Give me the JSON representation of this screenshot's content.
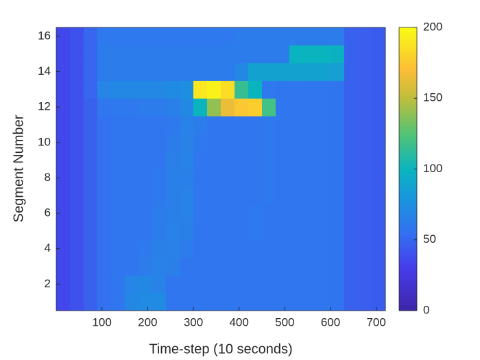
{
  "chart_data": {
    "type": "heatmap",
    "x_label": "Time-step (10 seconds)",
    "y_label": "Segment Number",
    "x_bins": [
      0,
      30,
      60,
      90,
      120,
      150,
      180,
      210,
      240,
      270,
      300,
      330,
      360,
      390,
      420,
      450,
      480,
      510,
      540,
      570,
      600,
      630,
      660,
      690,
      720
    ],
    "y": [
      1,
      2,
      3,
      4,
      5,
      6,
      7,
      8,
      9,
      10,
      11,
      12,
      13,
      14,
      15,
      16
    ],
    "z": [
      [
        35,
        40,
        48,
        55,
        58,
        70,
        72,
        72,
        58,
        58,
        58,
        58,
        58,
        58,
        58,
        58,
        58,
        58,
        58,
        58,
        57,
        48,
        46,
        45
      ],
      [
        35,
        40,
        48,
        55,
        58,
        68,
        70,
        66,
        58,
        58,
        58,
        58,
        58,
        58,
        58,
        58,
        58,
        58,
        58,
        58,
        57,
        48,
        46,
        45
      ],
      [
        35,
        40,
        48,
        55,
        58,
        58,
        62,
        66,
        64,
        58,
        58,
        58,
        58,
        58,
        58,
        58,
        58,
        58,
        58,
        58,
        57,
        48,
        46,
        45
      ],
      [
        35,
        40,
        48,
        55,
        58,
        58,
        60,
        64,
        66,
        62,
        58,
        58,
        58,
        58,
        58,
        58,
        58,
        58,
        58,
        58,
        57,
        48,
        46,
        45
      ],
      [
        35,
        40,
        48,
        55,
        58,
        58,
        58,
        62,
        66,
        64,
        58,
        58,
        58,
        58,
        60,
        58,
        58,
        58,
        58,
        58,
        57,
        48,
        46,
        45
      ],
      [
        35,
        40,
        48,
        55,
        58,
        58,
        58,
        62,
        64,
        66,
        58,
        58,
        58,
        58,
        60,
        58,
        58,
        58,
        58,
        58,
        57,
        48,
        46,
        45
      ],
      [
        35,
        40,
        48,
        55,
        58,
        58,
        58,
        60,
        64,
        66,
        58,
        58,
        58,
        58,
        58,
        60,
        58,
        58,
        58,
        58,
        57,
        48,
        46,
        45
      ],
      [
        35,
        40,
        48,
        55,
        58,
        58,
        58,
        60,
        64,
        65,
        58,
        58,
        58,
        58,
        58,
        60,
        58,
        58,
        58,
        58,
        57,
        48,
        46,
        45
      ],
      [
        35,
        40,
        48,
        55,
        58,
        58,
        58,
        58,
        64,
        66,
        58,
        58,
        58,
        58,
        58,
        60,
        58,
        58,
        58,
        58,
        57,
        48,
        46,
        45
      ],
      [
        35,
        40,
        48,
        55,
        58,
        58,
        58,
        58,
        62,
        66,
        60,
        58,
        58,
        58,
        58,
        60,
        58,
        58,
        58,
        58,
        57,
        48,
        46,
        45
      ],
      [
        35,
        40,
        48,
        55,
        58,
        58,
        58,
        58,
        60,
        66,
        62,
        58,
        58,
        58,
        58,
        60,
        58,
        58,
        58,
        58,
        57,
        48,
        46,
        45
      ],
      [
        35,
        40,
        48,
        58,
        60,
        60,
        62,
        62,
        64,
        70,
        100,
        140,
        165,
        175,
        178,
        120,
        58,
        58,
        58,
        58,
        57,
        48,
        46,
        45
      ],
      [
        35,
        40,
        50,
        68,
        70,
        70,
        70,
        70,
        72,
        75,
        190,
        195,
        185,
        115,
        100,
        60,
        58,
        58,
        58,
        58,
        57,
        48,
        46,
        45
      ],
      [
        35,
        40,
        50,
        62,
        62,
        62,
        62,
        62,
        62,
        62,
        62,
        62,
        62,
        70,
        88,
        88,
        88,
        88,
        88,
        88,
        86,
        48,
        46,
        45
      ],
      [
        35,
        40,
        50,
        62,
        62,
        62,
        62,
        62,
        62,
        62,
        62,
        62,
        62,
        62,
        62,
        62,
        62,
        100,
        100,
        100,
        98,
        48,
        46,
        45
      ],
      [
        35,
        40,
        50,
        60,
        60,
        60,
        60,
        60,
        60,
        60,
        60,
        60,
        60,
        62,
        62,
        62,
        62,
        62,
        62,
        62,
        62,
        48,
        46,
        45
      ]
    ],
    "colormap": "parula",
    "clim": [
      0,
      200
    ],
    "xlim": [
      0,
      720
    ],
    "ylim": [
      0.5,
      16.5
    ],
    "xticks": [
      100,
      200,
      300,
      400,
      500,
      600,
      700
    ],
    "yticks": [
      2,
      4,
      6,
      8,
      10,
      12,
      14,
      16
    ],
    "cticks": [
      0,
      50,
      100,
      150,
      200
    ]
  }
}
